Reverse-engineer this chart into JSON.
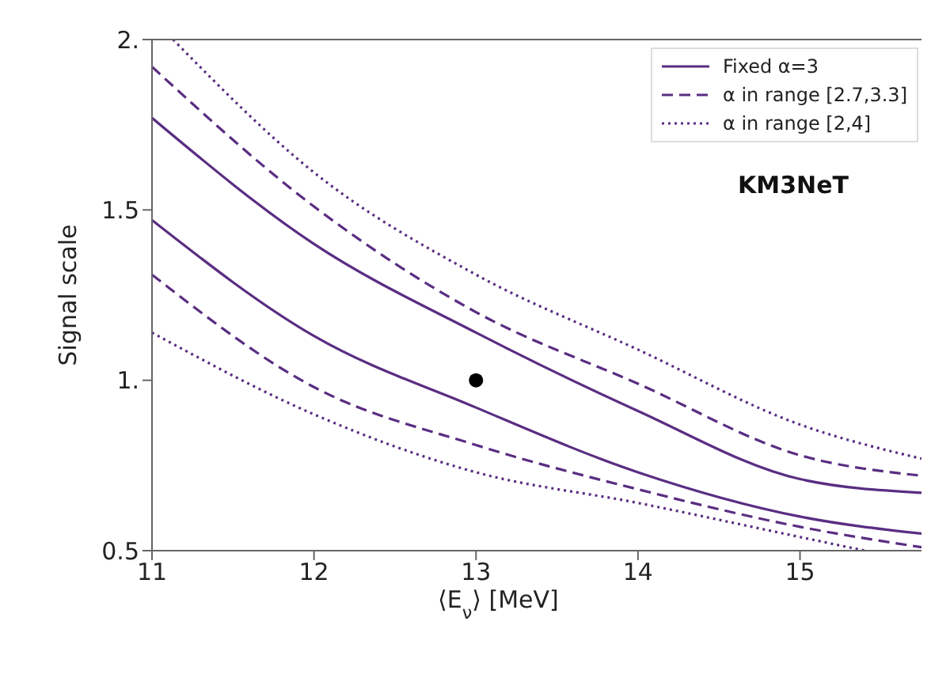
{
  "chart_data": {
    "type": "line",
    "xlabel": "⟨E$_{ν}$⟩ [MeV]",
    "ylabel": "Signal scale",
    "legend": "top right",
    "marker": "none",
    "xlim": [
      11,
      15.75
    ],
    "ylim": [
      0.5,
      2
    ],
    "xticks": [
      11,
      12,
      13,
      14,
      15
    ],
    "yticks": [
      {
        "value": 0.5,
        "label": "0.5"
      },
      {
        "value": 1,
        "label": "1."
      },
      {
        "value": 1.5,
        "label": "1.5"
      },
      {
        "value": 2,
        "label": "2."
      }
    ],
    "annotations": [
      "KM3NeT"
    ],
    "series": [
      {
        "name": "Fixed α=3",
        "color": "#5a2d82",
        "line_style": "solid",
        "x": [
          11,
          12,
          13,
          14,
          15,
          15.75
        ],
        "values": [
          1.77,
          1.4,
          1.14,
          0.91,
          0.71,
          0.67
        ]
      },
      {
        "name": "α in range [2.7,3.3]",
        "color": "#5a2d82",
        "line_style": "dashed",
        "x": [
          11,
          12,
          13,
          14,
          15,
          15.75
        ],
        "values": [
          1.92,
          1.51,
          1.2,
          0.99,
          0.78,
          0.72
        ]
      },
      {
        "name": "α in range [2,4]",
        "color": "#5a2d82",
        "line_style": "dotted",
        "x": [
          11.13,
          12,
          13,
          14,
          15,
          15.75
        ],
        "values": [
          2,
          1.61,
          1.31,
          1.09,
          0.87,
          0.77
        ]
      },
      {
        "color": "#5a2d82",
        "line_style": "solid",
        "x": [
          11,
          12,
          13,
          14,
          15,
          15.75
        ],
        "values": [
          1.47,
          1.13,
          0.92,
          0.73,
          0.6,
          0.55
        ]
      },
      {
        "color": "#5a2d82",
        "line_style": "dashed",
        "x": [
          11,
          12,
          13,
          14,
          15,
          15.75
        ],
        "values": [
          1.31,
          0.98,
          0.81,
          0.68,
          0.57,
          0.51
        ]
      },
      {
        "color": "#5a2d82",
        "line_style": "dotted",
        "x": [
          11,
          12,
          13,
          14,
          15,
          15.4
        ],
        "values": [
          1.14,
          0.9,
          0.73,
          0.64,
          0.54,
          0.5
        ]
      },
      {
        "type": "scatter",
        "color": "#000000",
        "marker": "circle",
        "x": [
          13
        ],
        "values": [
          1
        ]
      }
    ]
  }
}
